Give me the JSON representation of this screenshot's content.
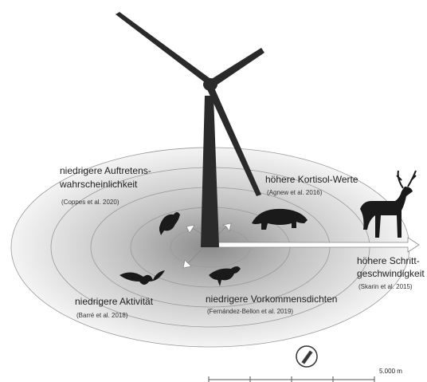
{
  "effects": [
    {
      "lines": [
        "niedrigere Auftretens-",
        "wahrscheinlichkeit"
      ],
      "citation": "(Coppes et al. 2020)"
    },
    {
      "lines": [
        "höhere Kortisol-Werte"
      ],
      "citation": "(Agnew et al. 2016)"
    },
    {
      "lines": [
        "höhere Schritt-",
        "geschwindigkeit"
      ],
      "citation": "(Skarin et al. 2015)"
    },
    {
      "lines": [
        "niedrigere Aktivität"
      ],
      "citation": "(Barré et al. 2018)"
    },
    {
      "lines": [
        "niedrigere Vorkommensdichten"
      ],
      "citation": "(Fernández-Bellon et al. 2019)"
    }
  ],
  "scale": {
    "label": "5.000 m"
  }
}
